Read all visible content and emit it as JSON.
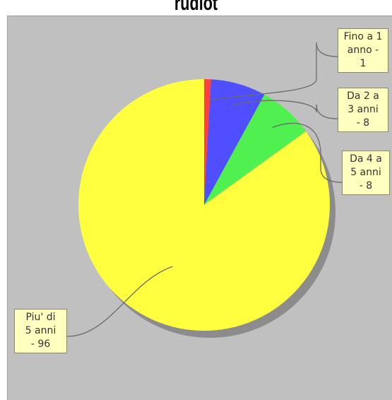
{
  "chart_data": {
    "type": "pie",
    "title": "rudiot",
    "slices": [
      {
        "label": "Fino a 1 anno",
        "value": 1,
        "color": "#ff4040"
      },
      {
        "label": "Da 2 a 3 anni",
        "value": 8,
        "color": "#4f4fff"
      },
      {
        "label": "Da 4 a 5 anni",
        "value": 8,
        "color": "#4ff04f"
      },
      {
        "label": "Piu' di 5 anni",
        "value": 96,
        "color": "#ffff40"
      }
    ],
    "background": "#c0c0c0",
    "label_background": "#ffffc0"
  },
  "labels": [
    {
      "lines": [
        "Fino a 1",
        "anno -",
        "1"
      ]
    },
    {
      "lines": [
        "Da 2 a",
        "3 anni",
        "- 8"
      ]
    },
    {
      "lines": [
        "Da 4 a",
        "5 anni",
        "- 8"
      ]
    },
    {
      "lines": [
        "Piu' di",
        "5 anni",
        "- 96"
      ]
    }
  ]
}
